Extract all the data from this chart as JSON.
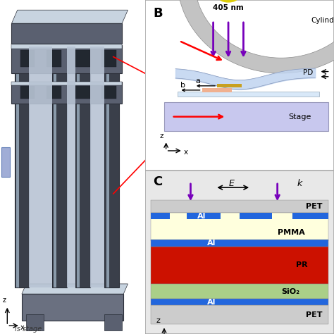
{
  "bg_color": "#ffffff",
  "panel_B_label": "B",
  "panel_C_label": "C",
  "label_405nm": "405 nm",
  "label_Cylind": "Cylind",
  "label_PD": "PD",
  "label_Stage": "Stage",
  "roller_color_outer": "#bbbbbb",
  "roller_color_inner": "#dddddd",
  "stage_color": "#c8c8ee",
  "film_color": "#c0d4ee",
  "gold_color": "#c8a020",
  "orange_color": "#f0b090",
  "substrate_color": "#dde8f8",
  "purple_color": "#7700bb",
  "layer_PET_color": "#cccccc",
  "layer_PMMA_color": "#ffffdd",
  "layer_Al_color": "#2266dd",
  "layer_PR_color": "#cc1100",
  "layer_SiO2_color": "#aacf88",
  "axis_z": "z",
  "axis_x": "x"
}
